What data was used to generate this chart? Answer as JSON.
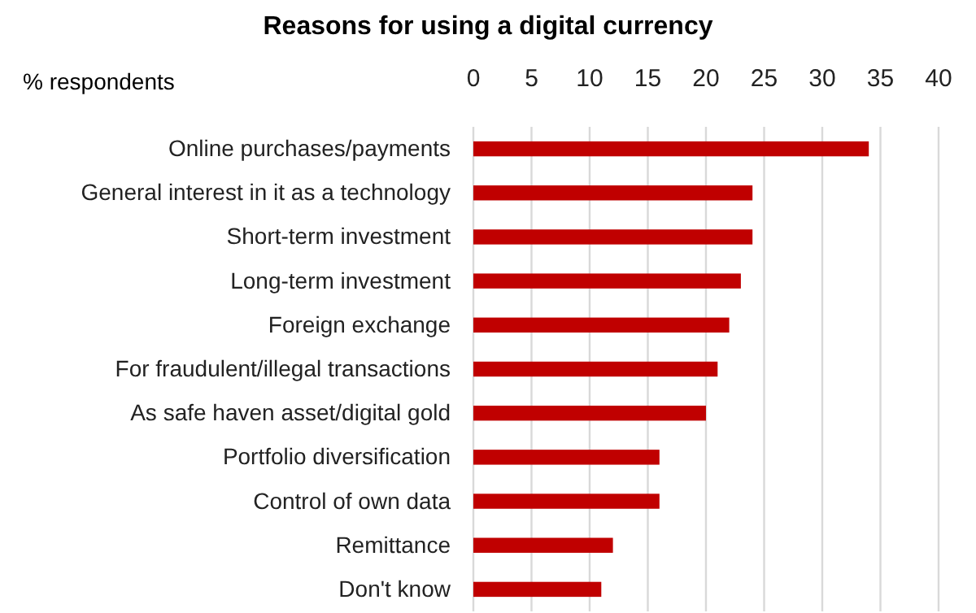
{
  "chart_data": {
    "type": "bar",
    "orientation": "horizontal",
    "title": "Reasons for using a digital currency",
    "xlabel": "% respondents",
    "categories": [
      "Online purchases/payments",
      "General interest in it as a technology",
      "Short-term investment",
      "Long-term investment",
      "Foreign exchange",
      "For fraudulent/illegal transactions",
      "As safe haven asset/digital gold",
      "Portfolio diversification",
      "Control of own data",
      "Remittance",
      "Don't know"
    ],
    "values": [
      34,
      24,
      24,
      23,
      22,
      21,
      20,
      16,
      16,
      12,
      11
    ],
    "color": "#c00000",
    "xlim": [
      0,
      40
    ],
    "xticks": [
      0,
      5,
      10,
      15,
      20,
      25,
      30,
      35,
      40
    ],
    "grid": "x"
  }
}
